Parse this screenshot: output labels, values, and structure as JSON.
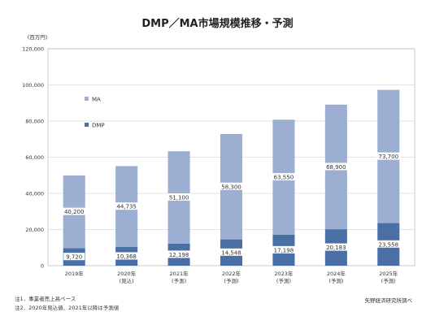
{
  "chart_data": {
    "type": "bar",
    "stacked": true,
    "title": "DMP／MA市場規模推移・予測",
    "ylabel": "(百万円)",
    "ylim": [
      0,
      120000
    ],
    "yticks": [
      "0",
      "20,000",
      "40,000",
      "60,000",
      "80,000",
      "100,000",
      "120,000"
    ],
    "grid": true,
    "legend_position": "inside-left",
    "categories": [
      [
        "2019年"
      ],
      [
        "2020年",
        "(見込)"
      ],
      [
        "2021年",
        "(予測)"
      ],
      [
        "2022年",
        "(予測)"
      ],
      [
        "2023年",
        "(予測)"
      ],
      [
        "2024年",
        "(予測)"
      ],
      [
        "2025年",
        "(予測)"
      ]
    ],
    "series": [
      {
        "name": "DMP",
        "color": "#4a6fa5",
        "values": [
          9720,
          10368,
          12198,
          14548,
          17198,
          20183,
          23558
        ],
        "labels": [
          "9,720",
          "10,368",
          "12,198",
          "14,548",
          "17,198",
          "20,183",
          "23,558"
        ]
      },
      {
        "name": "MA",
        "color": "#9cafd3",
        "values": [
          40200,
          44735,
          51100,
          58300,
          63550,
          68900,
          73700
        ],
        "labels": [
          "40,200",
          "44,735",
          "51,100",
          "58,300",
          "63,550",
          "68,900",
          "73,700"
        ]
      }
    ]
  },
  "notes": {
    "note1": "注1．事業者売上高ベース",
    "note2": "注2．2020年見込値、2021年以降は予測値"
  },
  "source": "矢野経済研究所調べ"
}
